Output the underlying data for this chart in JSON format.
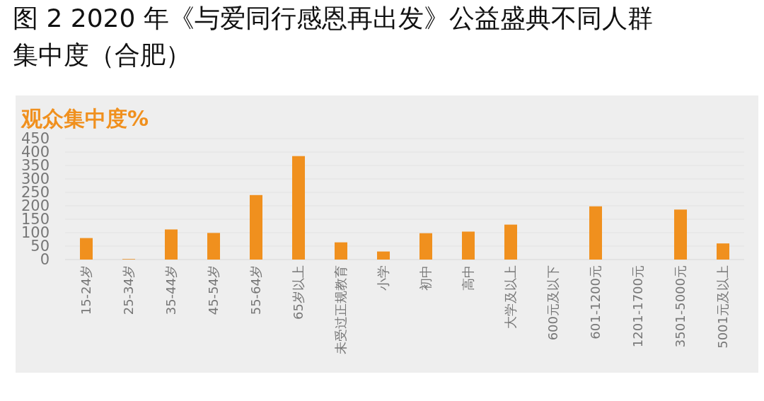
{
  "chart_data": {
    "type": "bar",
    "title": "图 2 2020 年《与爱同行感恩再出发》公益盛典不同人群集中度（合肥）",
    "ylabel": "观众集中度%",
    "categories": [
      "15-24岁",
      "25-34岁",
      "35-44岁",
      "45-54岁",
      "55-64岁",
      "65岁以上",
      "未受过正规教育",
      "小学",
      "初中",
      "高中",
      "大学及以上",
      "600元及以下",
      "601-1200元",
      "1201-1700元",
      "3501-5000元",
      "5001元及以上"
    ],
    "values": [
      80,
      2,
      112,
      99,
      240,
      385,
      64,
      30,
      98,
      104,
      130,
      0,
      198,
      0,
      186,
      60
    ],
    "color": "#f0901e",
    "ylim": [
      0,
      450
    ],
    "yticks": [
      0,
      50,
      100,
      150,
      200,
      250,
      300,
      350,
      400,
      450
    ],
    "grid": "y"
  }
}
